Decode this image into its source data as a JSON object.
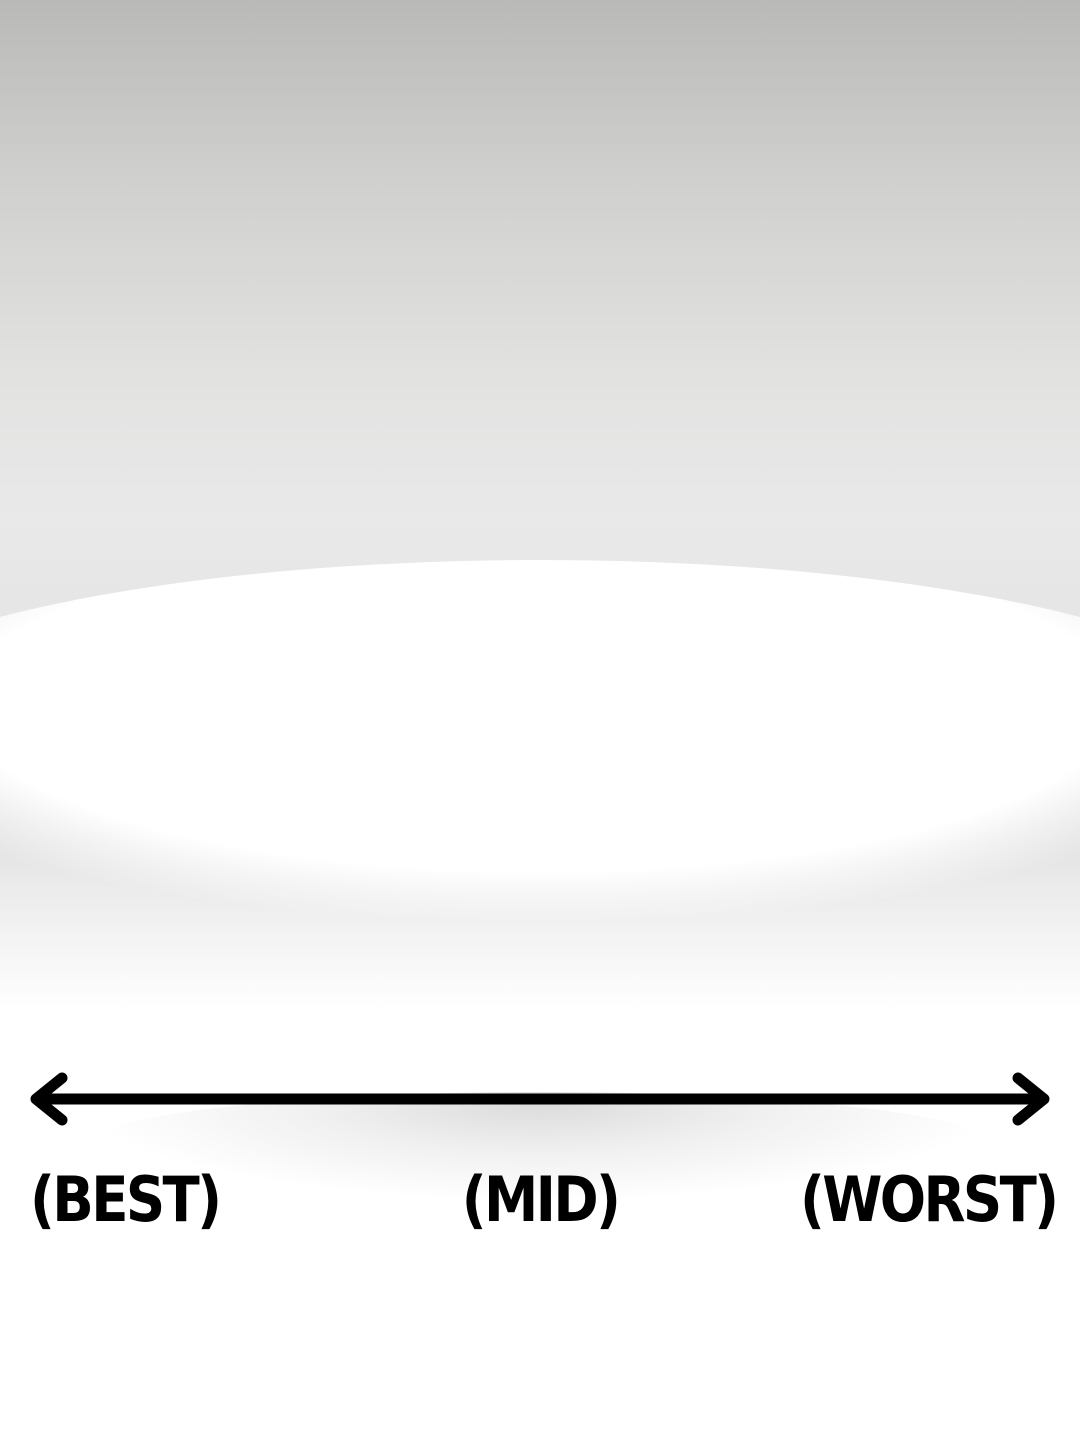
{
  "scale": {
    "left_label": "(BEST)",
    "middle_label": "(MID)",
    "right_label": "(WORST)",
    "line_color": "#000000",
    "background_top_color": "#b9b9b7",
    "background_bottom_color": "#ffffff"
  }
}
